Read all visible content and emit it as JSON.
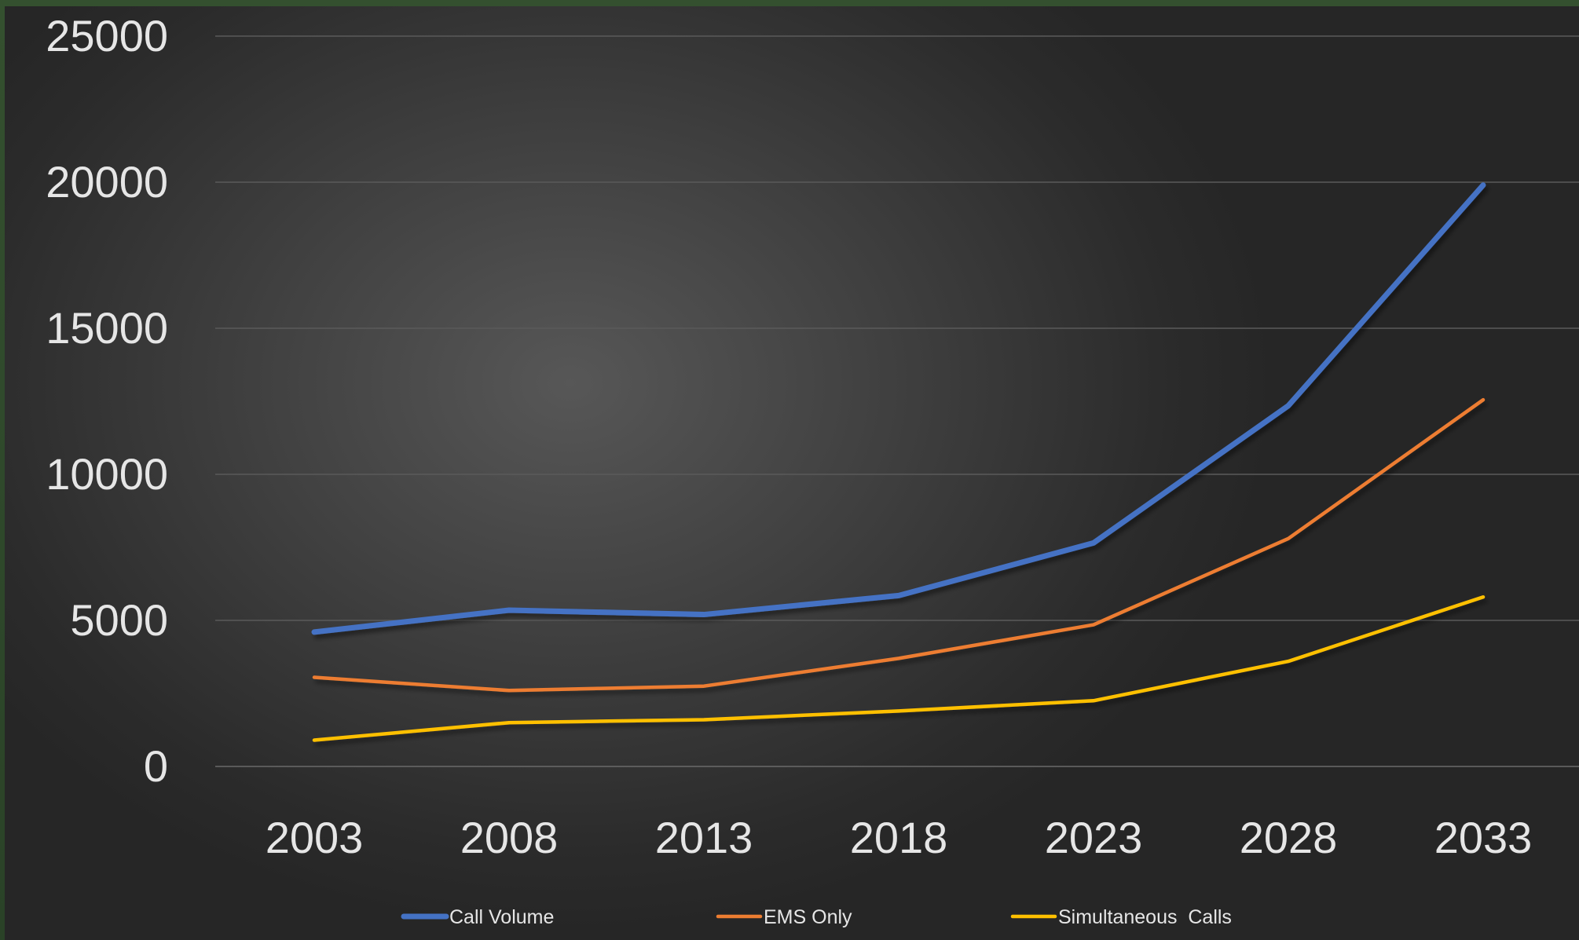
{
  "chart_data": {
    "type": "line",
    "title": "",
    "xlabel": "",
    "ylabel": "",
    "categories": [
      "2003",
      "2008",
      "2013",
      "2018",
      "2023",
      "2028",
      "2033"
    ],
    "ylim": [
      0,
      25000
    ],
    "yticks": [
      "0",
      "5000",
      "10000",
      "15000",
      "20000",
      "25000"
    ],
    "grid": true,
    "legend_position": "bottom",
    "series": [
      {
        "name": "Call Volume",
        "color": "#4472c4",
        "values": [
          4600,
          5350,
          5200,
          5850,
          7650,
          12350,
          19900
        ]
      },
      {
        "name": "EMS Only",
        "color": "#ed7d31",
        "values": [
          3050,
          2600,
          2750,
          3700,
          4850,
          7800,
          12550
        ]
      },
      {
        "name": "Simultaneous  Calls",
        "color": "#ffc000",
        "values": [
          900,
          1500,
          1600,
          1900,
          2250,
          3600,
          5800
        ]
      }
    ]
  }
}
